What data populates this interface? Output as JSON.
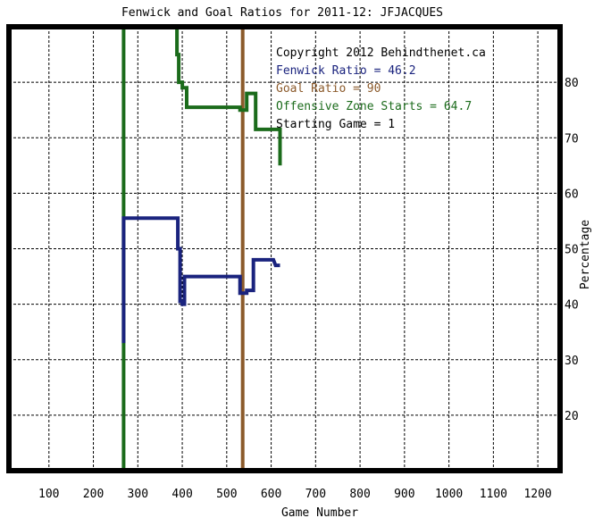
{
  "chart_data": {
    "type": "line",
    "title": "Fenwick and Goal Ratios for 2011-12: JFJACQUES",
    "xlabel": "Game Number",
    "ylabel": "Percentage",
    "xlim": [
      10,
      1250
    ],
    "ylim": [
      10,
      90
    ],
    "xticks": [
      100,
      200,
      300,
      400,
      500,
      600,
      700,
      800,
      900,
      1000,
      1100,
      1200
    ],
    "xtick_labels": [
      "100",
      "200",
      "300",
      "400",
      "500",
      "600",
      "700",
      "800",
      "900",
      "1000",
      "1100",
      "1200"
    ],
    "yticks": [
      20,
      30,
      40,
      50,
      60,
      70,
      80
    ],
    "ytick_labels": [
      "20",
      "30",
      "40",
      "50",
      "60",
      "70",
      "80"
    ],
    "grid": true,
    "annotations": [
      {
        "text": "Copyright 2012 Behindthenet.ca",
        "color": "#000000"
      },
      {
        "text": "Fenwick Ratio = 46.2",
        "color": "#1a237e"
      },
      {
        "text": "Goal Ratio = 90",
        "color": "#8b5a2b"
      },
      {
        "text": "Offensive Zone Starts = 64.7",
        "color": "#1b6b1b"
      },
      {
        "text": "Starting Game = 1",
        "color": "#000000"
      }
    ],
    "series": [
      {
        "color": "#1a237e",
        "x": [
          268,
          268,
          268,
          390,
          390,
          395,
          395,
          400,
          400,
          405,
          405,
          530,
          530,
          545,
          545,
          560,
          560,
          595,
          605,
          610,
          620
        ],
        "y": [
          33,
          40,
          55.5,
          55.5,
          50,
          50,
          40.5,
          40.5,
          40,
          40,
          45,
          45,
          42,
          42,
          42.5,
          42.5,
          48,
          48,
          48,
          47,
          47
        ]
      },
      {
        "color": "#8b5a2b",
        "x": [
          536,
          536
        ],
        "y": [
          10,
          90
        ]
      },
      {
        "color": "#1b6b1b",
        "x": [
          268,
          268,
          388,
          388,
          392,
          392,
          400,
          400,
          410,
          410,
          530,
          530,
          545,
          545,
          565,
          565,
          620,
          620
        ],
        "y": [
          10,
          90,
          90,
          85,
          85,
          80,
          80,
          79,
          79,
          75.5,
          75.5,
          75,
          75,
          78,
          78,
          71.5,
          71.5,
          65
        ]
      }
    ]
  }
}
